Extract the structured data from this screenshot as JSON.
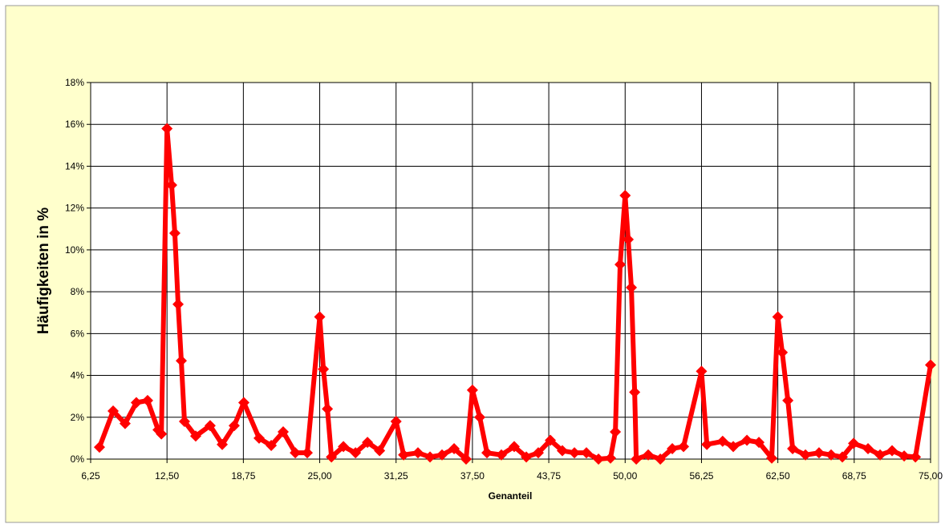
{
  "chart_data": {
    "type": "line",
    "x_label": "Genanteil",
    "y_label": "Häufigkeiten in %",
    "xlim": [
      6.25,
      75.0
    ],
    "ylim": [
      0,
      18
    ],
    "xticks": [
      {
        "value": 6.25,
        "label": "6,25"
      },
      {
        "value": 12.5,
        "label": "12,50"
      },
      {
        "value": 18.75,
        "label": "18,75"
      },
      {
        "value": 25.0,
        "label": "25,00"
      },
      {
        "value": 31.25,
        "label": "31,25"
      },
      {
        "value": 37.5,
        "label": "37,50"
      },
      {
        "value": 43.75,
        "label": "43,75"
      },
      {
        "value": 50.0,
        "label": "50,00"
      },
      {
        "value": 56.25,
        "label": "56,25"
      },
      {
        "value": 62.5,
        "label": "62,50"
      },
      {
        "value": 68.75,
        "label": "68,75"
      },
      {
        "value": 75.0,
        "label": "75,00"
      }
    ],
    "yticks": [
      {
        "value": 0,
        "label": "0%"
      },
      {
        "value": 2,
        "label": "2%"
      },
      {
        "value": 4,
        "label": "4%"
      },
      {
        "value": 6,
        "label": "6%"
      },
      {
        "value": 8,
        "label": "8%"
      },
      {
        "value": 10,
        "label": "10%"
      },
      {
        "value": 12,
        "label": "12%"
      },
      {
        "value": 14,
        "label": "14%"
      },
      {
        "value": 16,
        "label": "16%"
      },
      {
        "value": 18,
        "label": "18%"
      }
    ],
    "grid": true,
    "series": [
      {
        "name": "Häufigkeit",
        "color": "#ff0000",
        "x": [
          6.97,
          8.09,
          9.07,
          9.99,
          10.91,
          11.77,
          12.04,
          12.5,
          12.88,
          13.14,
          13.41,
          13.67,
          13.93,
          14.85,
          16.03,
          17.02,
          18.0,
          18.79,
          20.04,
          21.03,
          22.01,
          23.0,
          23.98,
          25.0,
          25.3,
          25.63,
          25.96,
          26.94,
          27.93,
          28.91,
          29.9,
          31.25,
          31.87,
          33.04,
          34.03,
          35.01,
          36.0,
          36.98,
          37.5,
          38.1,
          38.69,
          39.87,
          40.92,
          41.91,
          42.89,
          43.88,
          44.86,
          45.85,
          46.83,
          47.82,
          48.8,
          49.2,
          49.59,
          50.0,
          50.25,
          50.51,
          50.78,
          50.91,
          51.89,
          52.88,
          53.86,
          54.78,
          56.25,
          56.69,
          57.98,
          58.85,
          59.97,
          60.95,
          62.0,
          62.5,
          62.86,
          63.32,
          63.71,
          64.76,
          65.87,
          66.86,
          67.78,
          68.7,
          69.88,
          70.87,
          71.85,
          72.84,
          73.76,
          75.0
        ],
        "values": [
          0.57,
          2.3,
          1.7,
          2.7,
          2.8,
          1.4,
          1.2,
          15.8,
          13.1,
          10.8,
          7.4,
          4.7,
          1.8,
          1.1,
          1.6,
          0.7,
          1.6,
          2.7,
          1.0,
          0.65,
          1.3,
          0.3,
          0.3,
          6.8,
          4.3,
          2.4,
          0.1,
          0.6,
          0.3,
          0.8,
          0.4,
          1.8,
          0.2,
          0.3,
          0.1,
          0.2,
          0.5,
          0.0,
          3.3,
          2.0,
          0.3,
          0.2,
          0.6,
          0.1,
          0.3,
          0.9,
          0.4,
          0.3,
          0.3,
          0.0,
          0.05,
          1.3,
          9.3,
          12.6,
          10.5,
          8.2,
          3.2,
          0.0,
          0.2,
          0.0,
          0.5,
          0.6,
          4.2,
          0.7,
          0.85,
          0.6,
          0.9,
          0.8,
          0.05,
          6.8,
          5.1,
          2.8,
          0.5,
          0.2,
          0.3,
          0.2,
          0.1,
          0.75,
          0.5,
          0.2,
          0.4,
          0.15,
          0.1,
          4.5
        ]
      }
    ]
  }
}
